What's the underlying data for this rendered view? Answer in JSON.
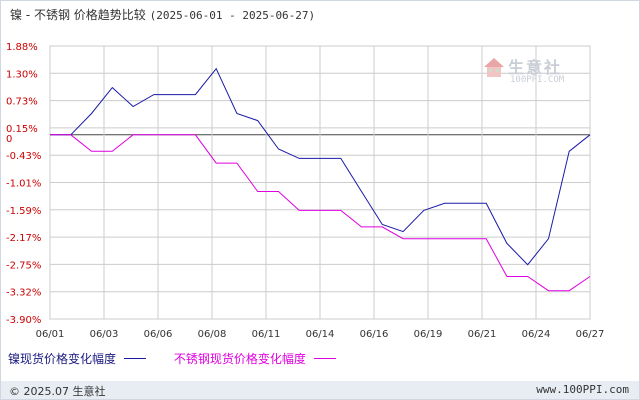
{
  "title": {
    "main": "镍 - 不锈钢 价格趋势比较",
    "range": "(2025-06-01 - 2025-06-27)"
  },
  "watermark": {
    "name": "生意社",
    "url": "100PPI.COM"
  },
  "footer": {
    "left": "© 2025.07 生意社",
    "right": "www.100PPI.com"
  },
  "colors": {
    "series1": "#1a1aa8",
    "series2": "#e000e0",
    "axis_label": "#cc0000",
    "grid": "#cccccc"
  },
  "chart_data": {
    "type": "line",
    "x_tick_labels": [
      "06/01",
      "06/03",
      "06/06",
      "06/08",
      "06/11",
      "06/14",
      "06/16",
      "06/19",
      "06/21",
      "06/24",
      "06/27"
    ],
    "y_tick_labels": [
      "1.88%",
      "1.30%",
      "0.73%",
      "0.15%",
      "-0.43%",
      "-1.01%",
      "-1.59%",
      "-2.17%",
      "-2.75%",
      "-3.32%",
      "-3.90%"
    ],
    "y_zero_label": "0",
    "ylim": [
      -3.9,
      1.88
    ],
    "x": [
      "06/01",
      "06/02",
      "06/03",
      "06/04",
      "06/05",
      "06/06",
      "06/07",
      "06/08",
      "06/09",
      "06/10",
      "06/11",
      "06/12",
      "06/13",
      "06/14",
      "06/15",
      "06/16",
      "06/17",
      "06/18",
      "06/19",
      "06/20",
      "06/21",
      "06/22",
      "06/23",
      "06/24",
      "06/25",
      "06/26",
      "06/27"
    ],
    "grid": true,
    "series": [
      {
        "name": "镍现货价格变化幅度",
        "values": [
          0,
          0,
          0.45,
          1.0,
          0.6,
          0.85,
          0.85,
          0.85,
          1.4,
          0.45,
          0.3,
          -0.3,
          -0.5,
          -0.5,
          -0.5,
          -1.2,
          -1.9,
          -2.05,
          -1.6,
          -1.45,
          -1.45,
          -1.45,
          -2.3,
          -2.75,
          -2.2,
          -0.35,
          0
        ]
      },
      {
        "name": "不锈钢现货价格变化幅度",
        "values": [
          0,
          0,
          -0.35,
          -0.35,
          0,
          0,
          0,
          0,
          -0.6,
          -0.6,
          -1.2,
          -1.2,
          -1.6,
          -1.6,
          -1.6,
          -1.95,
          -1.95,
          -2.2,
          -2.2,
          -2.2,
          -2.2,
          -2.2,
          -3.0,
          -3.0,
          -3.3,
          -3.3,
          -3.0
        ]
      }
    ],
    "legend_position": "bottom-left"
  }
}
